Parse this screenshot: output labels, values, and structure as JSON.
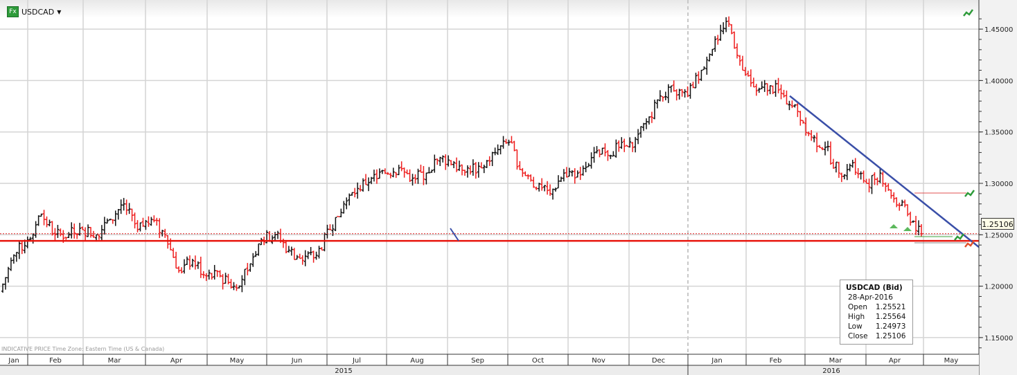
{
  "header": {
    "symbol": "USDCAD",
    "icon": "fx-icon"
  },
  "note": "INDICATIVE PRICE   Time Zone: Eastern Time (US & Canada)",
  "price_label": "1.25106",
  "tooltip": {
    "title": "USDCAD (Bid)",
    "date": "28-Apr-2016",
    "rows": [
      {
        "k": "Open",
        "v": "1.25521"
      },
      {
        "k": "High",
        "v": "1.25564"
      },
      {
        "k": "Low",
        "v": "1.24973"
      },
      {
        "k": "Close",
        "v": "1.25106"
      }
    ]
  },
  "colors": {
    "up": "#111111",
    "down": "#ee1c1c",
    "trend": "#3a4fa8",
    "support": "#e8140c",
    "grid": "#d4d4d4"
  },
  "chart_data": {
    "type": "ohlc",
    "title": "USDCAD",
    "ylim": [
      1.13,
      1.475
    ],
    "yticks": [
      "1.15000",
      "1.20000",
      "1.25000",
      "1.30000",
      "1.35000",
      "1.40000",
      "1.45000"
    ],
    "months": [
      "Jan",
      "Feb",
      "Mar",
      "Apr",
      "May",
      "Jun",
      "Jul",
      "Aug",
      "Sep",
      "Oct",
      "Nov",
      "Dec",
      "Jan",
      "Feb",
      "Mar",
      "Apr",
      "May"
    ],
    "years": [
      "2015",
      "2016"
    ],
    "start_price": 1.195,
    "weekly_closes": [
      1.23,
      1.245,
      1.27,
      1.25,
      1.25,
      1.255,
      1.25,
      1.265,
      1.28,
      1.255,
      1.265,
      1.25,
      1.215,
      1.225,
      1.21,
      1.21,
      1.2,
      1.215,
      1.245,
      1.25,
      1.235,
      1.225,
      1.23,
      1.255,
      1.28,
      1.295,
      1.305,
      1.31,
      1.315,
      1.305,
      1.31,
      1.325,
      1.32,
      1.315,
      1.315,
      1.33,
      1.34,
      1.31,
      1.295,
      1.29,
      1.31,
      1.31,
      1.325,
      1.33,
      1.335,
      1.335,
      1.36,
      1.385,
      1.39,
      1.385,
      1.41,
      1.44,
      1.455,
      1.41,
      1.39,
      1.395,
      1.385,
      1.37,
      1.345,
      1.335,
      1.31,
      1.32,
      1.3,
      1.31,
      1.285,
      1.27,
      1.251
    ],
    "last_close": 1.25106,
    "support_level": 1.2441,
    "trendline": {
      "from": {
        "date": "2016-02-12",
        "price": 1.385
      },
      "to": {
        "date": "2016-05-31",
        "price": 1.238
      }
    }
  }
}
